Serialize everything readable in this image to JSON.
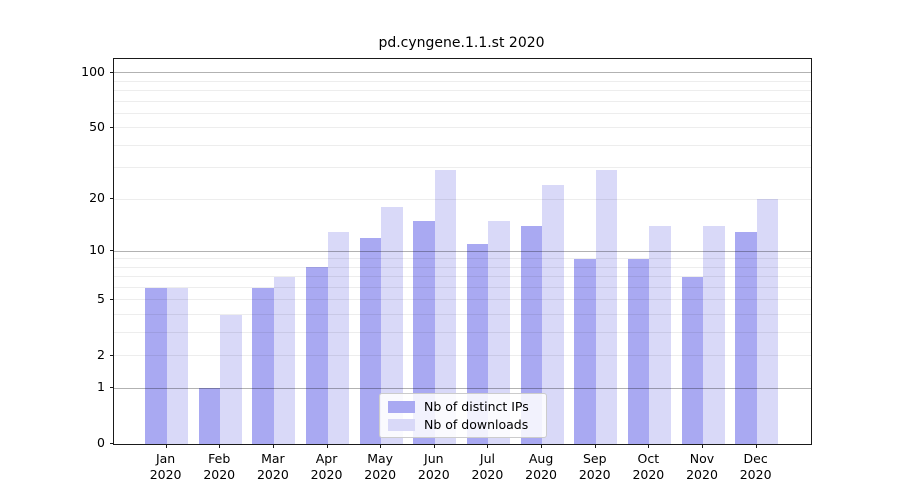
{
  "chart_data": {
    "type": "bar",
    "title": "pd.cyngene.1.1.st 2020",
    "categories": [
      "Jan 2020",
      "Feb 2020",
      "Mar 2020",
      "Apr 2020",
      "May 2020",
      "Jun 2020",
      "Jul 2020",
      "Aug 2020",
      "Sep 2020",
      "Oct 2020",
      "Nov 2020",
      "Dec 2020"
    ],
    "month_labels": [
      "Jan",
      "Feb",
      "Mar",
      "Apr",
      "May",
      "Jun",
      "Jul",
      "Aug",
      "Sep",
      "Oct",
      "Nov",
      "Dec"
    ],
    "year_label": "2020",
    "series": [
      {
        "name": "Nb of distinct IPs",
        "color": "#a9a9f2",
        "values": [
          6,
          1,
          6,
          8,
          12,
          15,
          11,
          14,
          9,
          9,
          7,
          13
        ]
      },
      {
        "name": "Nb of downloads",
        "color": "#d9d9f8",
        "values": [
          6,
          4,
          7,
          13,
          18,
          29,
          15,
          24,
          29,
          14,
          14,
          20
        ]
      }
    ],
    "xlabel": "",
    "ylabel": "",
    "yscale": "log1p",
    "ylim": [
      0,
      119
    ],
    "ytick_values": [
      0,
      1,
      2,
      5,
      10,
      20,
      50,
      100
    ],
    "ytick_labels": [
      "0",
      "1",
      "2",
      "5",
      "10",
      "20",
      "50",
      "100"
    ],
    "grid": true,
    "grid_major_values": [
      1,
      10,
      100
    ],
    "grid_minor_values": [
      2,
      3,
      4,
      5,
      6,
      7,
      8,
      9,
      20,
      30,
      40,
      50,
      60,
      70,
      80,
      90
    ],
    "grid_over_bars": true,
    "legend_position": "lower-center",
    "colors": {
      "bar_ips": "#a9a9f2",
      "bar_downloads": "#d9d9f8",
      "grid_major": "#b3b3b3",
      "grid_minor": "#ececec",
      "spine": "#1a1a1a",
      "legend_border": "#cccccc"
    }
  }
}
